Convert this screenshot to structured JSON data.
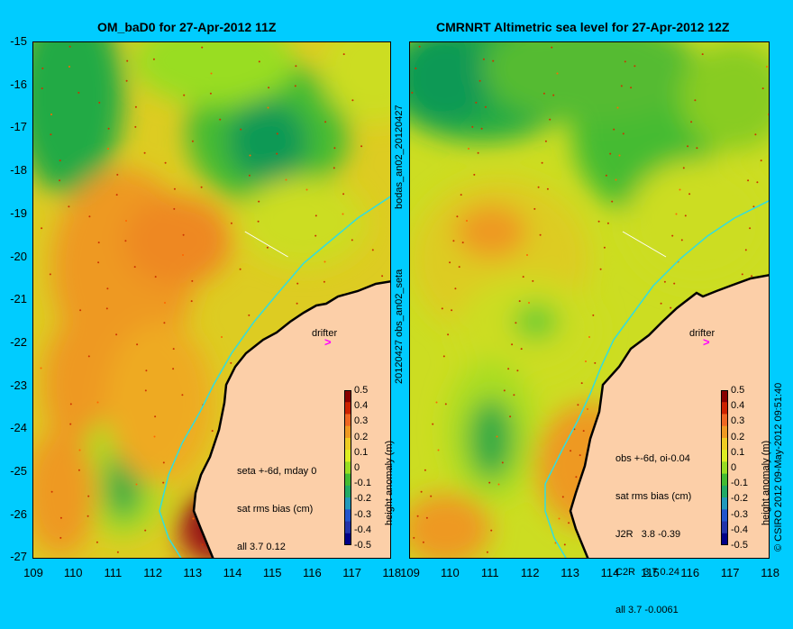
{
  "colors": {
    "background": "#00ccff",
    "land": "#fccfa8",
    "coastline": "#000000",
    "shelf_line": "#33dddd",
    "drifter": "#ff00ff"
  },
  "y_ticks": [
    "-15",
    "-16",
    "-17",
    "-18",
    "-19",
    "-20",
    "-21",
    "-22",
    "-23",
    "-24",
    "-25",
    "-26",
    "-27"
  ],
  "x_ticks": [
    "109",
    "110",
    "111",
    "112",
    "113",
    "114",
    "115",
    "116",
    "117",
    "118"
  ],
  "colorbar": {
    "ticks": [
      "0.5",
      "0.4",
      "0.3",
      "0.2",
      "0.1",
      "0",
      "-0.1",
      "-0.2",
      "-0.3",
      "-0.4",
      "-0.5"
    ],
    "label": "height anomaly (m)"
  },
  "drifter_label": "drifter",
  "drifter_symbol": ">",
  "panels": [
    {
      "title": "OM_baD0 for 27-Apr-2012 11Z",
      "stats": [
        "seta +-6d, mday 0",
        "sat rms bias (cm)",
        "all 3.7 0.12"
      ]
    },
    {
      "title": "CMRNRT Altimetric sea level  for 27-Apr-2012 12Z",
      "stats": [
        "obs +-6d, oi-0.04",
        "sat rms bias (cm)",
        "J2R   3.8 -0.39",
        "C2R   3.7 0.24",
        "all 3.7 -0.0061"
      ]
    }
  ],
  "middle_text": "20120427 obs_an02_seta",
  "middle_text_top": "bodas_an02_20120427",
  "credit": "© CSIRO 2012  09-May-2012 09:51:40"
}
